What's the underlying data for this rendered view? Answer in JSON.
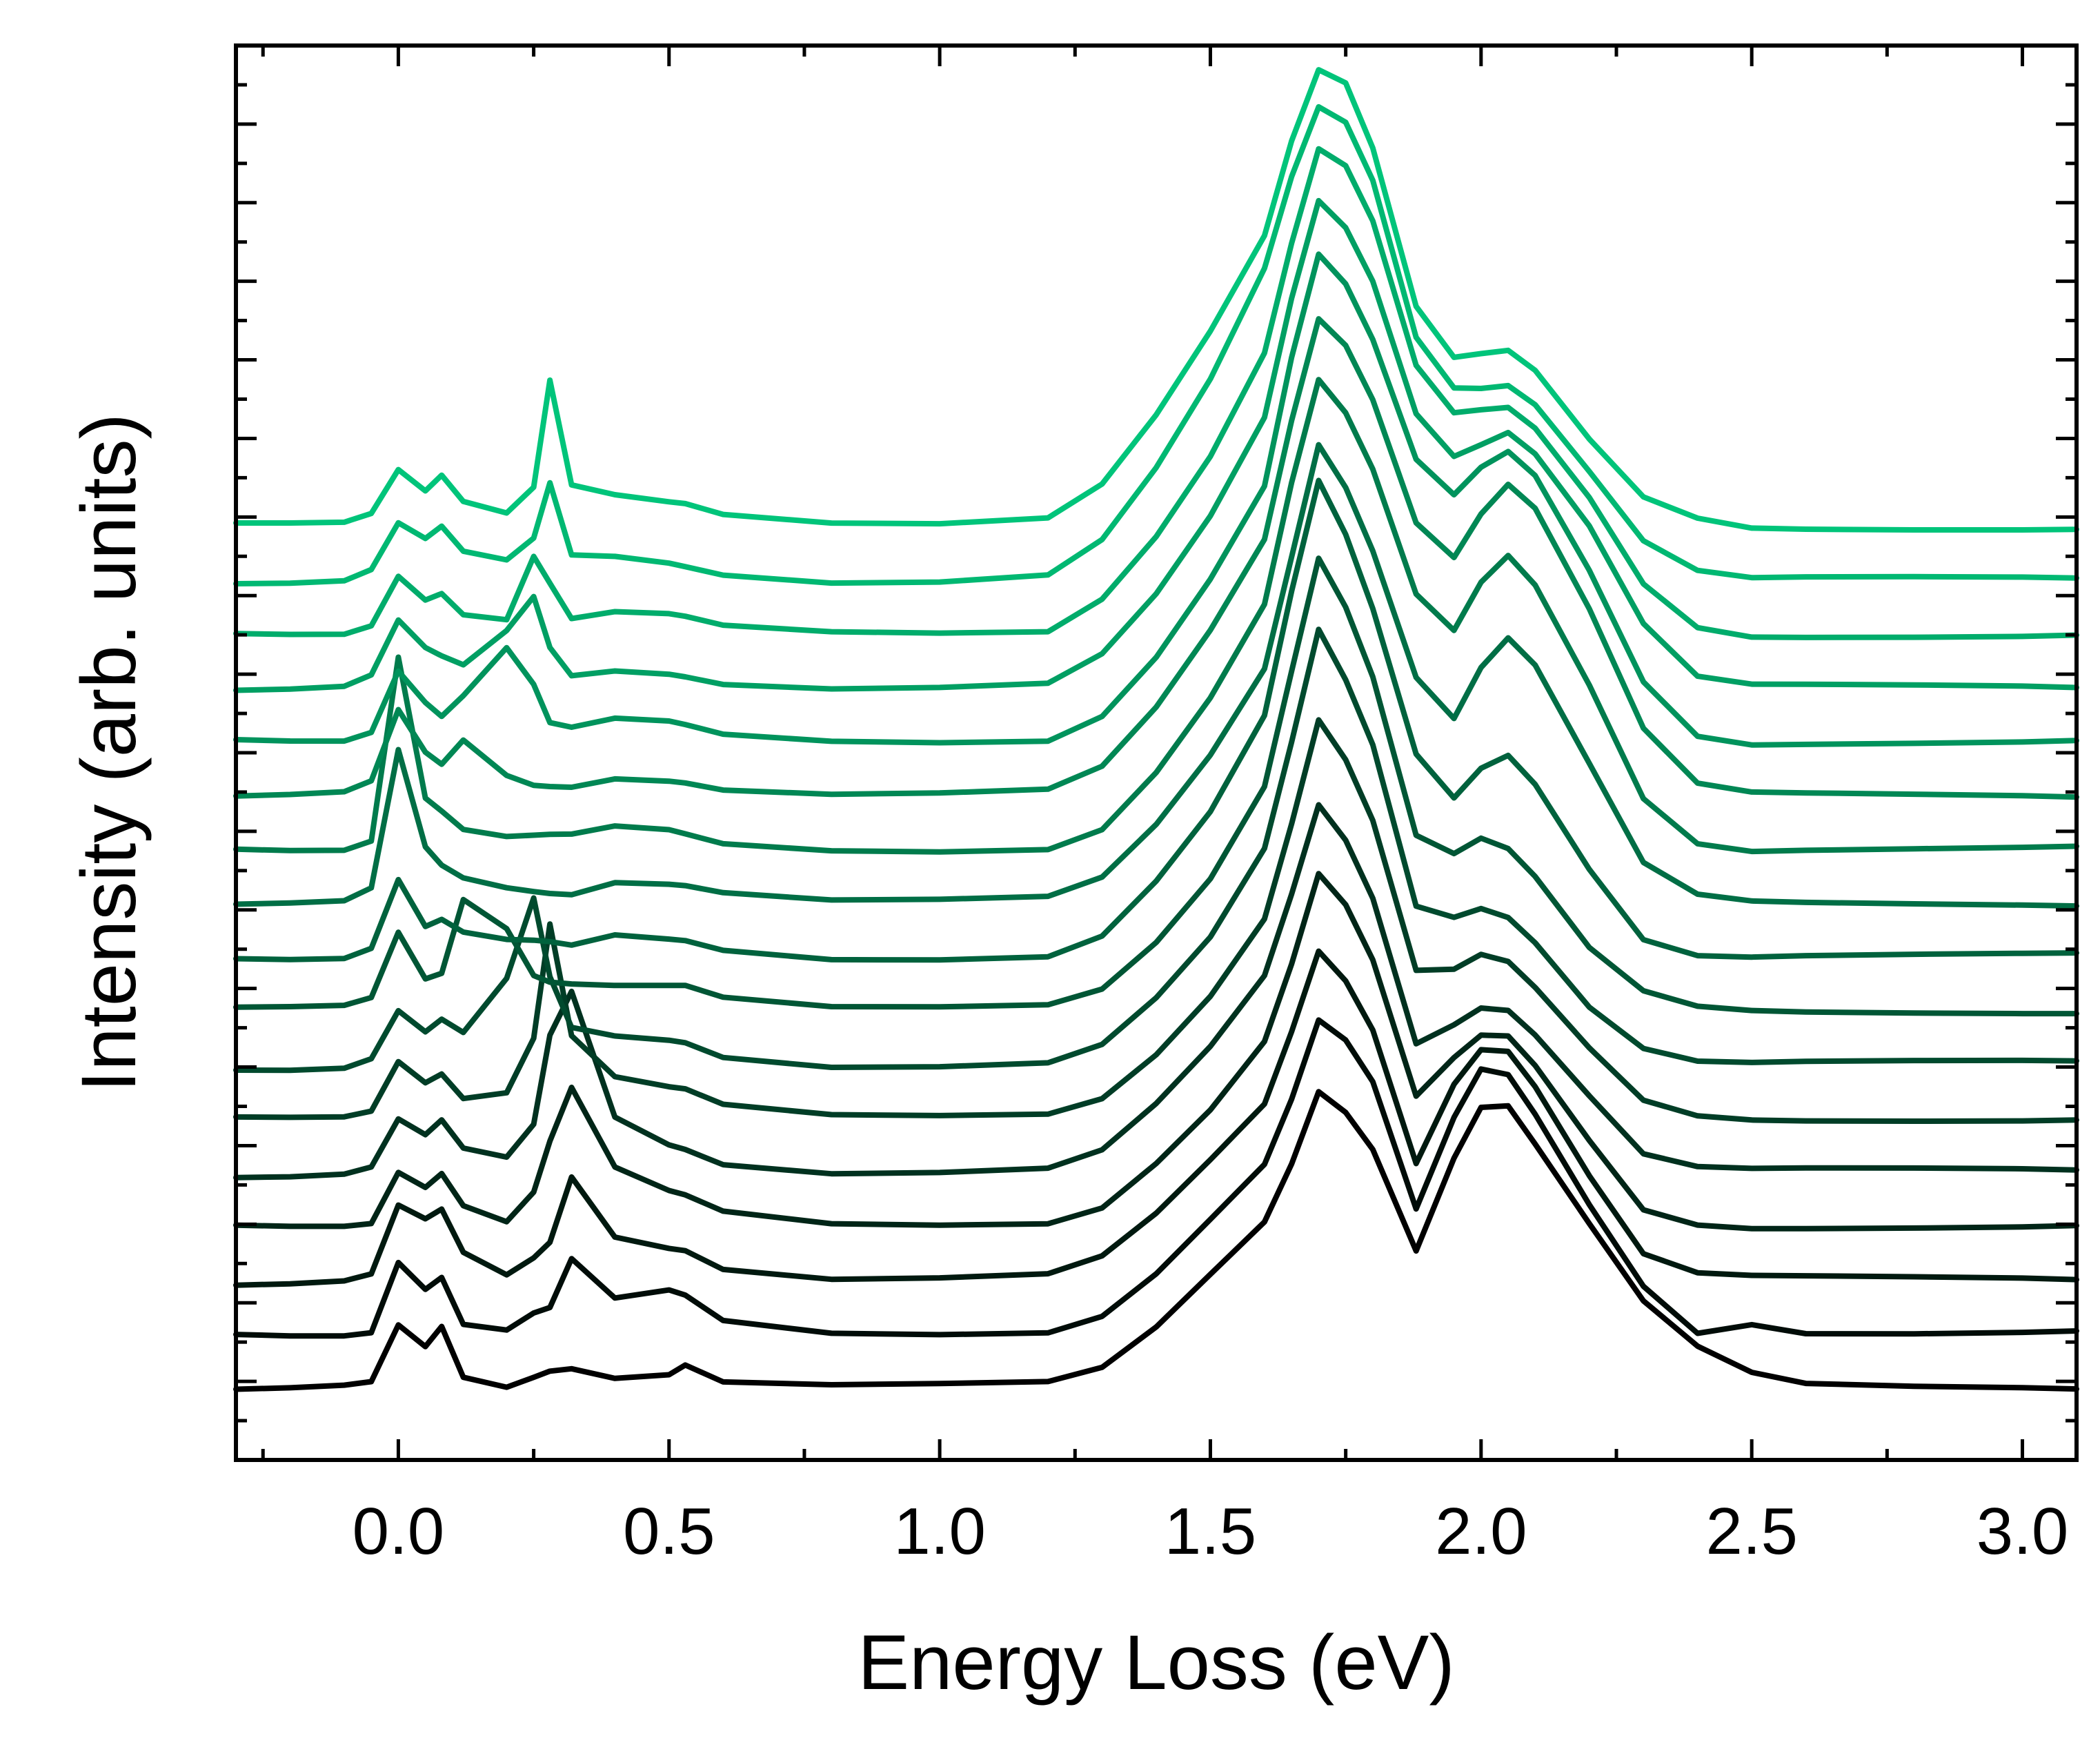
{
  "chart_data": {
    "type": "line",
    "title": "",
    "xlabel": "Energy Loss (eV)",
    "ylabel": "Intensity (arb. units)",
    "xlim": [
      -0.3,
      3.1
    ],
    "ylim": [
      0,
      1
    ],
    "x_ticks": [
      "0.0",
      "0.5",
      "1.0",
      "1.5",
      "2.0",
      "2.5",
      "3.0"
    ],
    "x_tick_values": [
      0.0,
      0.5,
      1.0,
      1.5,
      2.0,
      2.5,
      3.0
    ],
    "y_tick_labels_shown": false,
    "grid": false,
    "legend": "none",
    "series_count": 17,
    "color_start": "#000000",
    "color_end": "#00c47a",
    "x_sample": [
      -0.3,
      -0.2,
      -0.1,
      -0.05,
      0.0,
      0.05,
      0.08,
      0.12,
      0.2,
      0.25,
      0.28,
      0.32,
      0.4,
      0.5,
      0.53,
      0.6,
      0.8,
      1.0,
      1.2,
      1.3,
      1.4,
      1.5,
      1.6,
      1.65,
      1.7,
      1.75,
      1.8,
      1.88,
      1.95,
      2.0,
      2.05,
      2.1,
      2.2,
      2.3,
      2.4,
      2.5,
      2.6,
      2.8,
      3.0,
      3.1
    ],
    "series": [
      {
        "offset": 0.0,
        "values": [
          0.05,
          0.05,
          0.051,
          0.053,
          0.093,
          0.078,
          0.093,
          0.058,
          0.052,
          0.06,
          0.065,
          0.067,
          0.06,
          0.062,
          0.068,
          0.055,
          0.052,
          0.052,
          0.053,
          0.063,
          0.092,
          0.13,
          0.168,
          0.21,
          0.262,
          0.248,
          0.222,
          0.15,
          0.215,
          0.25,
          0.25,
          0.222,
          0.165,
          0.11,
          0.078,
          0.06,
          0.053,
          0.052,
          0.052,
          0.052
        ]
      },
      {
        "offset": 0.038,
        "values": [
          0.088,
          0.088,
          0.089,
          0.092,
          0.142,
          0.123,
          0.131,
          0.097,
          0.092,
          0.103,
          0.106,
          0.14,
          0.112,
          0.118,
          0.115,
          0.098,
          0.09,
          0.09,
          0.092,
          0.104,
          0.134,
          0.172,
          0.21,
          0.255,
          0.31,
          0.295,
          0.265,
          0.175,
          0.24,
          0.275,
          0.272,
          0.245,
          0.182,
          0.125,
          0.092,
          0.098,
          0.091,
          0.09,
          0.09,
          0.09
        ]
      },
      {
        "offset": 0.075,
        "values": [
          0.125,
          0.125,
          0.126,
          0.13,
          0.178,
          0.168,
          0.175,
          0.145,
          0.13,
          0.143,
          0.155,
          0.202,
          0.16,
          0.152,
          0.15,
          0.136,
          0.128,
          0.128,
          0.13,
          0.142,
          0.172,
          0.21,
          0.25,
          0.302,
          0.36,
          0.34,
          0.306,
          0.212,
          0.268,
          0.292,
          0.29,
          0.264,
          0.2,
          0.144,
          0.13,
          0.128,
          0.128,
          0.128,
          0.128,
          0.128
        ]
      },
      {
        "offset": 0.113,
        "values": [
          0.164,
          0.164,
          0.165,
          0.168,
          0.205,
          0.195,
          0.205,
          0.182,
          0.17,
          0.19,
          0.225,
          0.262,
          0.205,
          0.188,
          0.185,
          0.174,
          0.166,
          0.166,
          0.168,
          0.18,
          0.212,
          0.25,
          0.298,
          0.352,
          0.415,
          0.392,
          0.352,
          0.255,
          0.282,
          0.298,
          0.298,
          0.278,
          0.226,
          0.178,
          0.168,
          0.166,
          0.166,
          0.166,
          0.166,
          0.166
        ]
      },
      {
        "offset": 0.15,
        "values": [
          0.202,
          0.202,
          0.203,
          0.207,
          0.24,
          0.228,
          0.238,
          0.218,
          0.212,
          0.236,
          0.3,
          0.332,
          0.244,
          0.225,
          0.222,
          0.211,
          0.204,
          0.204,
          0.206,
          0.218,
          0.25,
          0.29,
          0.34,
          0.398,
          0.462,
          0.438,
          0.398,
          0.296,
          0.31,
          0.322,
          0.32,
          0.302,
          0.258,
          0.216,
          0.206,
          0.204,
          0.204,
          0.204,
          0.204,
          0.204
        ]
      },
      {
        "offset": 0.188,
        "values": [
          0.24,
          0.24,
          0.241,
          0.246,
          0.282,
          0.268,
          0.275,
          0.258,
          0.262,
          0.3,
          0.38,
          0.3,
          0.27,
          0.262,
          0.26,
          0.249,
          0.242,
          0.242,
          0.244,
          0.256,
          0.288,
          0.33,
          0.385,
          0.452,
          0.525,
          0.496,
          0.452,
          0.345,
          0.345,
          0.355,
          0.35,
          0.332,
          0.29,
          0.254,
          0.244,
          0.242,
          0.242,
          0.242,
          0.242,
          0.242
        ]
      },
      {
        "offset": 0.225,
        "values": [
          0.278,
          0.278,
          0.279,
          0.285,
          0.318,
          0.302,
          0.31,
          0.3,
          0.338,
          0.395,
          0.34,
          0.305,
          0.3,
          0.298,
          0.297,
          0.287,
          0.28,
          0.28,
          0.282,
          0.294,
          0.326,
          0.368,
          0.43,
          0.505,
          0.585,
          0.55,
          0.505,
          0.392,
          0.385,
          0.392,
          0.386,
          0.368,
          0.322,
          0.292,
          0.282,
          0.28,
          0.28,
          0.28,
          0.28,
          0.28
        ]
      },
      {
        "offset": 0.262,
        "values": [
          0.318,
          0.318,
          0.319,
          0.325,
          0.372,
          0.34,
          0.345,
          0.398,
          0.378,
          0.345,
          0.34,
          0.338,
          0.336,
          0.335,
          0.334,
          0.325,
          0.318,
          0.318,
          0.32,
          0.332,
          0.366,
          0.412,
          0.478,
          0.56,
          0.64,
          0.605,
          0.555,
          0.442,
          0.428,
          0.438,
          0.43,
          0.41,
          0.36,
          0.33,
          0.32,
          0.318,
          0.318,
          0.318,
          0.318,
          0.318
        ]
      },
      {
        "offset": 0.3,
        "values": [
          0.356,
          0.356,
          0.357,
          0.364,
          0.412,
          0.378,
          0.382,
          0.372,
          0.366,
          0.365,
          0.364,
          0.362,
          0.37,
          0.368,
          0.368,
          0.362,
          0.356,
          0.356,
          0.358,
          0.372,
          0.41,
          0.458,
          0.525,
          0.612,
          0.69,
          0.652,
          0.6,
          0.498,
          0.468,
          0.49,
          0.5,
          0.48,
          0.42,
          0.37,
          0.358,
          0.356,
          0.356,
          0.356,
          0.356,
          0.356
        ]
      },
      {
        "offset": 0.338,
        "values": [
          0.392,
          0.392,
          0.393,
          0.402,
          0.5,
          0.432,
          0.42,
          0.412,
          0.406,
          0.404,
          0.403,
          0.402,
          0.41,
          0.408,
          0.406,
          0.4,
          0.394,
          0.394,
          0.396,
          0.41,
          0.448,
          0.498,
          0.56,
          0.64,
          0.72,
          0.69,
          0.645,
          0.555,
          0.525,
          0.56,
          0.58,
          0.56,
          0.49,
          0.42,
          0.398,
          0.394,
          0.394,
          0.394,
          0.394,
          0.394
        ]
      },
      {
        "offset": 0.375,
        "values": [
          0.432,
          0.432,
          0.433,
          0.44,
          0.57,
          0.47,
          0.46,
          0.446,
          0.44,
          0.44,
          0.44,
          0.44,
          0.446,
          0.444,
          0.442,
          0.436,
          0.432,
          0.432,
          0.434,
          0.448,
          0.488,
          0.54,
          0.605,
          0.69,
          0.762,
          0.738,
          0.698,
          0.61,
          0.585,
          0.62,
          0.64,
          0.62,
          0.55,
          0.47,
          0.438,
          0.432,
          0.432,
          0.432,
          0.432,
          0.432
        ]
      },
      {
        "offset": 0.412,
        "values": [
          0.47,
          0.47,
          0.471,
          0.478,
          0.528,
          0.498,
          0.49,
          0.508,
          0.484,
          0.478,
          0.478,
          0.478,
          0.484,
          0.482,
          0.48,
          0.474,
          0.47,
          0.47,
          0.472,
          0.488,
          0.53,
          0.585,
          0.65,
          0.735,
          0.808,
          0.79,
          0.752,
          0.665,
          0.64,
          0.67,
          0.69,
          0.672,
          0.6,
          0.515,
          0.476,
          0.47,
          0.47,
          0.47,
          0.47,
          0.47
        ]
      },
      {
        "offset": 0.45,
        "values": [
          0.508,
          0.508,
          0.509,
          0.516,
          0.56,
          0.538,
          0.528,
          0.542,
          0.575,
          0.548,
          0.52,
          0.516,
          0.522,
          0.52,
          0.518,
          0.512,
          0.508,
          0.508,
          0.51,
          0.528,
          0.57,
          0.625,
          0.69,
          0.78,
          0.852,
          0.83,
          0.79,
          0.705,
          0.68,
          0.7,
          0.712,
          0.696,
          0.63,
          0.552,
          0.514,
          0.508,
          0.508,
          0.508,
          0.508,
          0.508
        ]
      },
      {
        "offset": 0.488,
        "values": [
          0.546,
          0.546,
          0.547,
          0.554,
          0.592,
          0.572,
          0.566,
          0.56,
          0.585,
          0.61,
          0.575,
          0.556,
          0.56,
          0.558,
          0.556,
          0.55,
          0.546,
          0.546,
          0.548,
          0.568,
          0.61,
          0.665,
          0.735,
          0.82,
          0.89,
          0.872,
          0.835,
          0.742,
          0.712,
          0.72,
          0.728,
          0.712,
          0.66,
          0.59,
          0.552,
          0.546,
          0.546,
          0.546,
          0.546,
          0.546
        ]
      },
      {
        "offset": 0.525,
        "values": [
          0.582,
          0.582,
          0.583,
          0.59,
          0.626,
          0.61,
          0.615,
          0.6,
          0.596,
          0.64,
          0.62,
          0.594,
          0.598,
          0.596,
          0.594,
          0.588,
          0.584,
          0.584,
          0.586,
          0.61,
          0.655,
          0.712,
          0.785,
          0.862,
          0.928,
          0.915,
          0.875,
          0.772,
          0.738,
          0.74,
          0.742,
          0.728,
          0.68,
          0.62,
          0.59,
          0.584,
          0.584,
          0.584,
          0.584,
          0.584
        ]
      },
      {
        "offset": 0.562,
        "values": [
          0.622,
          0.622,
          0.623,
          0.63,
          0.662,
          0.65,
          0.658,
          0.64,
          0.634,
          0.65,
          0.69,
          0.64,
          0.64,
          0.636,
          0.634,
          0.628,
          0.622,
          0.622,
          0.626,
          0.65,
          0.7,
          0.762,
          0.84,
          0.905,
          0.955,
          0.945,
          0.905,
          0.795,
          0.76,
          0.76,
          0.762,
          0.748,
          0.7,
          0.65,
          0.628,
          0.622,
          0.622,
          0.622,
          0.622,
          0.622
        ]
      },
      {
        "offset": 0.6,
        "values": [
          0.66,
          0.66,
          0.661,
          0.668,
          0.7,
          0.686,
          0.698,
          0.68,
          0.672,
          0.69,
          0.765,
          0.69,
          0.682,
          0.676,
          0.674,
          0.666,
          0.66,
          0.66,
          0.665,
          0.69,
          0.74,
          0.8,
          0.868,
          0.935,
          0.985,
          0.975,
          0.928,
          0.815,
          0.778,
          0.78,
          0.782,
          0.768,
          0.72,
          0.68,
          0.666,
          0.66,
          0.66,
          0.66,
          0.66,
          0.66
        ]
      }
    ]
  }
}
